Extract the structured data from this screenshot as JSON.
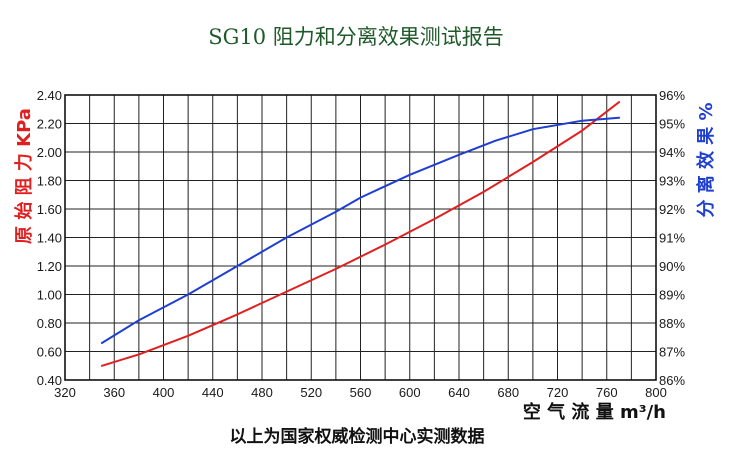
{
  "chart_data": {
    "type": "line",
    "title": "SG10 阻力和分离效果测试报告",
    "xlabel": "空 气 流 量 m³/h",
    "ylabel_left": "原 始 阻 力 KPa",
    "ylabel_right": "分 离 效 果 %",
    "footnote": "以上为国家权威检测中心实测数据",
    "xlim": [
      320,
      800
    ],
    "x_ticks": [
      "320",
      "360",
      "400",
      "440",
      "480",
      "520",
      "560",
      "600",
      "640",
      "680",
      "720",
      "760",
      "800"
    ],
    "ylim_left": [
      0.4,
      2.4
    ],
    "y_ticks_left": [
      "0.40",
      "0.60",
      "0.80",
      "1.00",
      "1.20",
      "1.40",
      "1.60",
      "1.80",
      "2.00",
      "2.20",
      "2.40"
    ],
    "ylim_right": [
      86,
      96
    ],
    "y_ticks_right": [
      "86%",
      "87%",
      "88%",
      "89%",
      "90%",
      "91%",
      "92%",
      "93%",
      "94%",
      "95%",
      "96%"
    ],
    "grid": true,
    "colors": {
      "left_axis": "#e02020",
      "right_axis": "#1f3fd0",
      "title": "#1f5a2a"
    },
    "series": [
      {
        "axis": "left",
        "color": "#e02020",
        "x": [
          350,
          380,
          420,
          460,
          500,
          540,
          580,
          620,
          660,
          700,
          740,
          770
        ],
        "y": [
          0.5,
          0.58,
          0.71,
          0.86,
          1.02,
          1.18,
          1.35,
          1.53,
          1.72,
          1.93,
          2.15,
          2.35
        ]
      },
      {
        "axis": "right",
        "color": "#1f3fd0",
        "x": [
          350,
          380,
          420,
          460,
          500,
          540,
          560,
          600,
          640,
          670,
          700,
          740,
          770
        ],
        "y": [
          87.3,
          88.1,
          89.0,
          90.0,
          91.0,
          91.9,
          92.4,
          93.2,
          93.9,
          94.4,
          94.8,
          95.1,
          95.2
        ]
      }
    ]
  }
}
